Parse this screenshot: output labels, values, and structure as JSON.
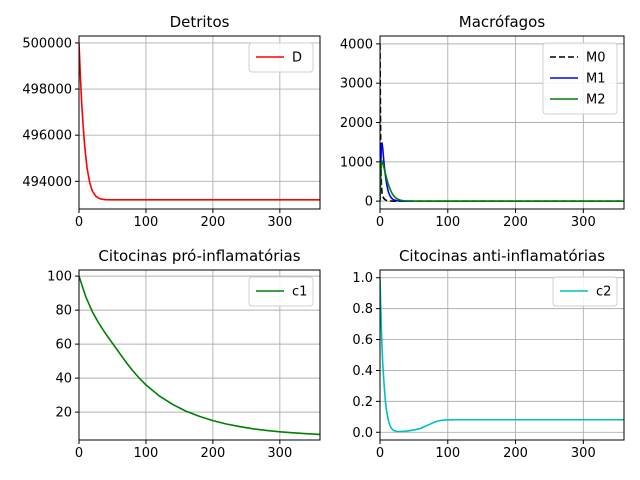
{
  "chart_data": [
    {
      "type": "line",
      "title": "Detritos",
      "xlabel": "",
      "ylabel": "",
      "xlim": [
        0,
        360
      ],
      "ylim": [
        492800,
        500300
      ],
      "xticks": [
        0,
        100,
        200,
        300
      ],
      "yticks": [
        494000,
        496000,
        498000,
        500000
      ],
      "grid": true,
      "legend_position": "top-right",
      "series": [
        {
          "name": "D",
          "color": "#ff0000",
          "dash": "",
          "x": [
            0,
            2,
            4,
            6,
            8,
            10,
            12,
            14,
            16,
            18,
            20,
            25,
            30,
            35,
            40,
            50,
            60,
            80,
            100,
            150,
            200,
            250,
            300,
            360
          ],
          "y": [
            500000,
            498600,
            497400,
            496500,
            495700,
            495100,
            494600,
            494250,
            493950,
            493750,
            493580,
            493360,
            493260,
            493220,
            493205,
            493200,
            493200,
            493200,
            493200,
            493200,
            493200,
            493200,
            493200,
            493200
          ]
        }
      ]
    },
    {
      "type": "line",
      "title": "Macrófagos",
      "xlabel": "",
      "ylabel": "",
      "xlim": [
        0,
        360
      ],
      "ylim": [
        -200,
        4200
      ],
      "xticks": [
        0,
        100,
        200,
        300
      ],
      "yticks": [
        0,
        1000,
        2000,
        3000,
        4000
      ],
      "grid": true,
      "legend_position": "top-right",
      "series": [
        {
          "name": "M0",
          "color": "#000000",
          "dash": "6,3",
          "x": [
            0,
            0.5,
            1,
            1.5,
            2,
            3,
            4,
            6,
            8,
            10,
            15,
            20,
            360
          ],
          "y": [
            4000,
            2600,
            1500,
            800,
            450,
            200,
            120,
            60,
            30,
            15,
            5,
            0,
            0
          ]
        },
        {
          "name": "M1",
          "color": "#0000ff",
          "dash": "",
          "x": [
            0,
            1,
            2,
            3,
            4,
            5,
            6,
            8,
            10,
            12,
            14,
            16,
            18,
            20,
            25,
            30,
            40,
            360
          ],
          "y": [
            0,
            900,
            1400,
            1480,
            1350,
            1150,
            950,
            650,
            420,
            260,
            160,
            100,
            60,
            35,
            10,
            3,
            0,
            0
          ]
        },
        {
          "name": "M2",
          "color": "#008000",
          "dash": "",
          "x": [
            0,
            1,
            2,
            3,
            4,
            6,
            8,
            10,
            12,
            15,
            18,
            21,
            25,
            30,
            35,
            40,
            50,
            360
          ],
          "y": [
            0,
            600,
            950,
            1020,
            980,
            840,
            700,
            560,
            440,
            300,
            190,
            120,
            60,
            25,
            10,
            4,
            0,
            0
          ]
        }
      ]
    },
    {
      "type": "line",
      "title": "Citocinas pró-inflamatórias",
      "xlabel": "",
      "ylabel": "",
      "xlim": [
        0,
        360
      ],
      "ylim": [
        3.6,
        103.6
      ],
      "xticks": [
        0,
        100,
        200,
        300
      ],
      "yticks": [
        20,
        40,
        60,
        80,
        100
      ],
      "grid": true,
      "legend_position": "top-right",
      "series": [
        {
          "name": "c1",
          "color": "#008000",
          "dash": "",
          "x": [
            0,
            10,
            20,
            30,
            40,
            50,
            60,
            70,
            80,
            90,
            100,
            120,
            140,
            160,
            180,
            200,
            220,
            240,
            260,
            280,
            300,
            320,
            340,
            360
          ],
          "y": [
            100,
            88,
            79,
            72,
            66,
            60.5,
            55,
            49.5,
            44.5,
            40,
            36,
            29.5,
            24.5,
            20.5,
            17.5,
            15,
            13,
            11.5,
            10.2,
            9.2,
            8.4,
            7.8,
            7.3,
            6.9
          ]
        }
      ]
    },
    {
      "type": "line",
      "title": "Citocinas anti-inflamatórias",
      "xlabel": "",
      "ylabel": "",
      "xlim": [
        0,
        360
      ],
      "ylim": [
        -0.05,
        1.05
      ],
      "xticks": [
        0,
        100,
        200,
        300
      ],
      "yticks": [
        0.0,
        0.2,
        0.4,
        0.6,
        0.8,
        1.0
      ],
      "ytick_decimals": 1,
      "grid": true,
      "legend_position": "top-right",
      "series": [
        {
          "name": "c2",
          "color": "#00bfbf",
          "dash": "",
          "x": [
            0,
            1,
            2,
            3,
            4,
            6,
            8,
            10,
            13,
            16,
            20,
            25,
            30,
            40,
            50,
            60,
            70,
            80,
            85,
            90,
            95,
            100,
            110,
            150,
            200,
            250,
            300,
            360
          ],
          "y": [
            1.0,
            0.83,
            0.68,
            0.55,
            0.45,
            0.31,
            0.2,
            0.13,
            0.065,
            0.03,
            0.012,
            0.005,
            0.005,
            0.008,
            0.015,
            0.025,
            0.045,
            0.065,
            0.072,
            0.077,
            0.079,
            0.08,
            0.081,
            0.081,
            0.081,
            0.081,
            0.081,
            0.081
          ]
        }
      ]
    }
  ]
}
